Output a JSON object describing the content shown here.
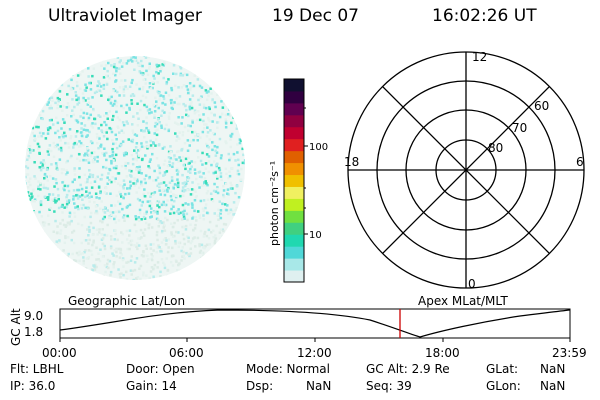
{
  "header": {
    "title": "Ultraviolet Imager",
    "date": "19 Dec 07",
    "time": "16:02:26 UT"
  },
  "colorbar": {
    "unit_label": "photon cm⁻²s⁻¹",
    "ticks": [
      "100",
      "10"
    ],
    "colors": [
      "#dff0f0",
      "#a8e8e8",
      "#50d8d8",
      "#20d8b0",
      "#40d080",
      "#70e040",
      "#c0f020",
      "#f0f060",
      "#f0c000",
      "#f09000",
      "#e06000",
      "#e02020",
      "#c00030",
      "#900040",
      "#600050",
      "#300040",
      "#101030"
    ]
  },
  "polar": {
    "mlt_labels": {
      "top": "12",
      "bottom": "0",
      "left": "18",
      "right": "6"
    },
    "lat_labels": [
      "60",
      "70",
      "80"
    ]
  },
  "altitude_plot": {
    "geo_label": "Geographic Lat/Lon",
    "apex_label": "Apex MLat/MLT",
    "ylabel": "GC Alt",
    "ytick_max": "9.0",
    "ytick_min": "1.8",
    "xticks": [
      "00:00",
      "06:00",
      "12:00",
      "18:00",
      "23:59"
    ],
    "current_time_color": "#cc0000"
  },
  "footer": {
    "row1": {
      "flt": "Flt: LBHL",
      "door": "Door: Open",
      "mode": "Mode: Normal",
      "gc_alt": "GC Alt: 2.9 Re",
      "glat_label": "GLat:",
      "glat_val": "NaN"
    },
    "row2": {
      "ip": "IP: 36.0",
      "gain": "Gain: 14",
      "dsp_label": "Dsp:",
      "dsp_val": "NaN",
      "seq": "Seq: 39",
      "glon_label": "GLon:",
      "glon_val": "NaN"
    }
  }
}
